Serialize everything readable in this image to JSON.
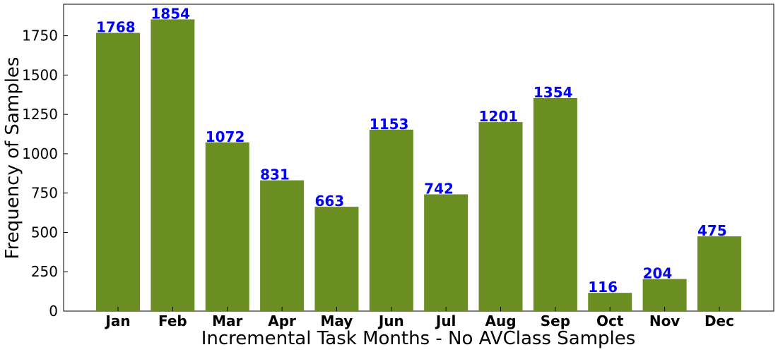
{
  "chart_data": {
    "type": "bar",
    "categories": [
      "Jan",
      "Feb",
      "Mar",
      "Apr",
      "May",
      "Jun",
      "Jul",
      "Aug",
      "Sep",
      "Oct",
      "Nov",
      "Dec"
    ],
    "values": [
      1768,
      1854,
      1072,
      831,
      663,
      1153,
      742,
      1201,
      1354,
      116,
      204,
      475
    ],
    "title": "",
    "xlabel": "Incremental Task Months - No AVClass Samples",
    "ylabel": "Frequency of Samples",
    "ylim": [
      0,
      1950
    ],
    "yticks": [
      0,
      250,
      500,
      750,
      1000,
      1250,
      1500,
      1750
    ],
    "grid": false,
    "legend": "none",
    "bar_color": "#6b8e23",
    "label_color": "#0000ff"
  }
}
